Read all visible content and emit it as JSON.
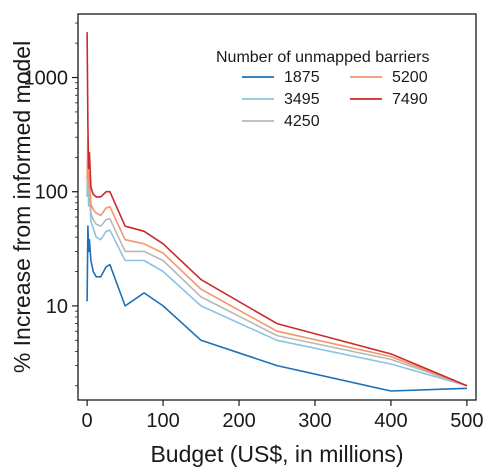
{
  "chart_data": {
    "type": "line",
    "title": "",
    "xlabel": "Budget (US$, in millions)",
    "ylabel": "% Increase from informed model",
    "xlim": [
      -12,
      512
    ],
    "ylim": [
      1.5,
      3600
    ],
    "yscale": "log",
    "xticks": [
      0,
      100,
      200,
      300,
      400,
      500
    ],
    "xtick_labels": [
      "0",
      "100",
      "200",
      "300",
      "400",
      "500"
    ],
    "yticks": [
      10,
      100,
      1000
    ],
    "ytick_labels": [
      "10",
      "100",
      "1000"
    ],
    "grid": false,
    "legend": {
      "title": "Number of unmapped barriers",
      "position": "top-right",
      "columns": 2
    },
    "series": [
      {
        "name": "1875",
        "color": "#1f6fb5",
        "x": [
          0,
          1,
          2,
          3,
          5,
          8,
          12,
          18,
          25,
          30,
          50,
          75,
          100,
          150,
          250,
          400,
          500
        ],
        "y": [
          11,
          50,
          30,
          38,
          25,
          20,
          18,
          18,
          22,
          23,
          10,
          13,
          10,
          5,
          3,
          1.8,
          1.9
        ]
      },
      {
        "name": "3495",
        "color": "#8cc3e3",
        "x": [
          0,
          1,
          2,
          3,
          5,
          8,
          12,
          18,
          25,
          30,
          50,
          75,
          100,
          150,
          250,
          400,
          500
        ],
        "y": [
          90,
          200,
          75,
          100,
          55,
          48,
          40,
          38,
          45,
          46,
          25,
          25,
          20,
          10,
          5,
          3.1,
          2
        ]
      },
      {
        "name": "4250",
        "color": "#b8b8b8",
        "x": [
          0,
          1,
          2,
          3,
          5,
          8,
          12,
          18,
          25,
          30,
          50,
          75,
          100,
          150,
          250,
          400,
          500
        ],
        "y": [
          110,
          260,
          90,
          120,
          65,
          57,
          52,
          50,
          57,
          58,
          30,
          30,
          25,
          12,
          5.5,
          3.4,
          2
        ]
      },
      {
        "name": "5200",
        "color": "#f4956a",
        "x": [
          0,
          1,
          2,
          3,
          5,
          8,
          12,
          18,
          25,
          30,
          50,
          75,
          100,
          150,
          250,
          400,
          500
        ],
        "y": [
          130,
          300,
          110,
          145,
          78,
          70,
          65,
          62,
          72,
          74,
          38,
          35,
          29,
          14,
          6,
          3.6,
          2
        ]
      },
      {
        "name": "7490",
        "color": "#cc2a2a",
        "x": [
          0,
          1,
          2,
          3,
          5,
          8,
          12,
          18,
          25,
          30,
          50,
          75,
          100,
          150,
          250,
          400,
          500
        ],
        "y": [
          2500,
          380,
          160,
          220,
          110,
          95,
          90,
          90,
          100,
          100,
          50,
          45,
          35,
          17,
          7,
          3.8,
          2
        ]
      }
    ]
  }
}
